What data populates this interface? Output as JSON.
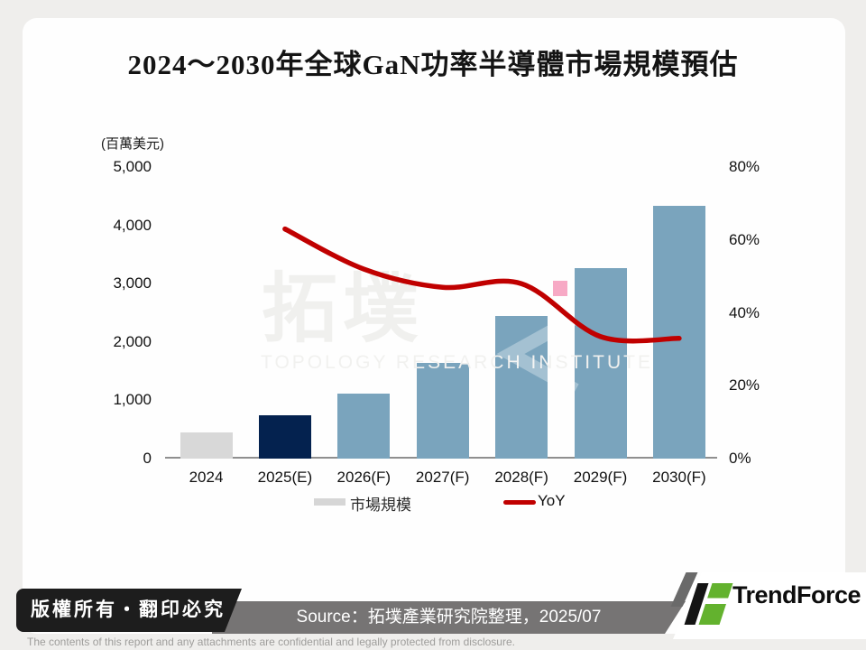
{
  "page": {
    "title": "2024～2030年全球GaN功率半導體市場規模預估"
  },
  "chart_data": {
    "type": "bar",
    "combo": "bar+line",
    "title": "2024～2030年全球GaN功率半導體市場規模預估",
    "unit_label": "(百萬美元)",
    "categories": [
      "2024",
      "2025(E)",
      "2026(F)",
      "2027(F)",
      "2028(F)",
      "2029(F)",
      "2030(F)"
    ],
    "series": [
      {
        "name": "市場規模",
        "type": "bar",
        "axis": "left",
        "values": [
          450,
          750,
          1110,
          1640,
          2450,
          3270,
          4330
        ],
        "colors": [
          "#d8d8d8",
          "#04224f",
          "#7aa4bd",
          "#7aa4bd",
          "#7aa4bd",
          "#7aa4bd",
          "#7aa4bd"
        ]
      },
      {
        "name": "YoY",
        "type": "line",
        "axis": "right",
        "color": "#c00000",
        "values": [
          null,
          63,
          52,
          47,
          48,
          33.5,
          33
        ]
      }
    ],
    "left_axis": {
      "label": "(百萬美元)",
      "min": 0,
      "max": 5000,
      "ticks": [
        "5,000",
        "4,000",
        "3,000",
        "2,000",
        "1,000",
        "0"
      ]
    },
    "right_axis": {
      "min": 0,
      "max": 80,
      "ticks": [
        "80%",
        "60%",
        "40%",
        "20%",
        "0%"
      ]
    },
    "legend": {
      "position": "bottom",
      "items": [
        {
          "label": "市場規模"
        },
        {
          "label": "YoY"
        }
      ]
    },
    "grid": "off"
  },
  "watermark": {
    "cjk": "拓墣",
    "en": "TOPOLOGY RESEARCH INSTITUTE",
    "pink_color": "#f7a9c5"
  },
  "footer": {
    "copyright": "版權所有‧翻印必究",
    "source": "Source：拓墣產業研究院整理，2025/07",
    "brand": "TrendForce",
    "disclaimer": "The contents of this report and any attachments are confidential and legally protected from disclosure."
  },
  "colors": {
    "bar_gray": "#d8d8d8",
    "bar_navy": "#04224f",
    "bar_blue": "#7aa4bd",
    "line_red": "#c00000",
    "banner_black": "#1d1d1d",
    "banner_gray": "#767474",
    "brand_green": "#63b22e"
  }
}
